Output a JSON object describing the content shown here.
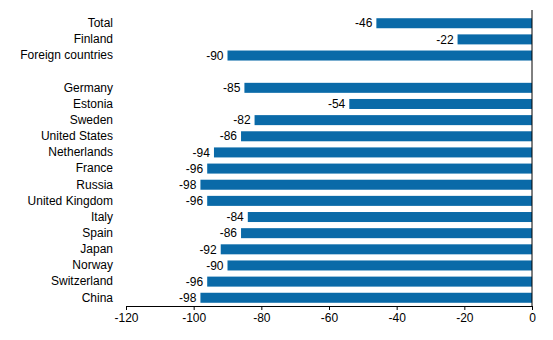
{
  "chart_data": {
    "type": "bar",
    "orientation": "horizontal",
    "categories": [
      "Total",
      "Finland",
      "Foreign countries",
      null,
      "Germany",
      "Estonia",
      "Sweden",
      "United States",
      "Netherlands",
      "France",
      "Russia",
      "United Kingdom",
      "Italy",
      "Spain",
      "Japan",
      "Norway",
      "Switzerland",
      "China"
    ],
    "values": [
      -46,
      -22,
      -90,
      null,
      -85,
      -54,
      -82,
      -86,
      -94,
      -96,
      -98,
      -96,
      -84,
      -86,
      -92,
      -90,
      -96,
      -98
    ],
    "color": "#0a6aa8",
    "xlim": [
      -120,
      0
    ],
    "xticks": [
      -120,
      -100,
      -80,
      -60,
      -40,
      -20,
      0
    ],
    "grid": false,
    "data_labels": true
  }
}
